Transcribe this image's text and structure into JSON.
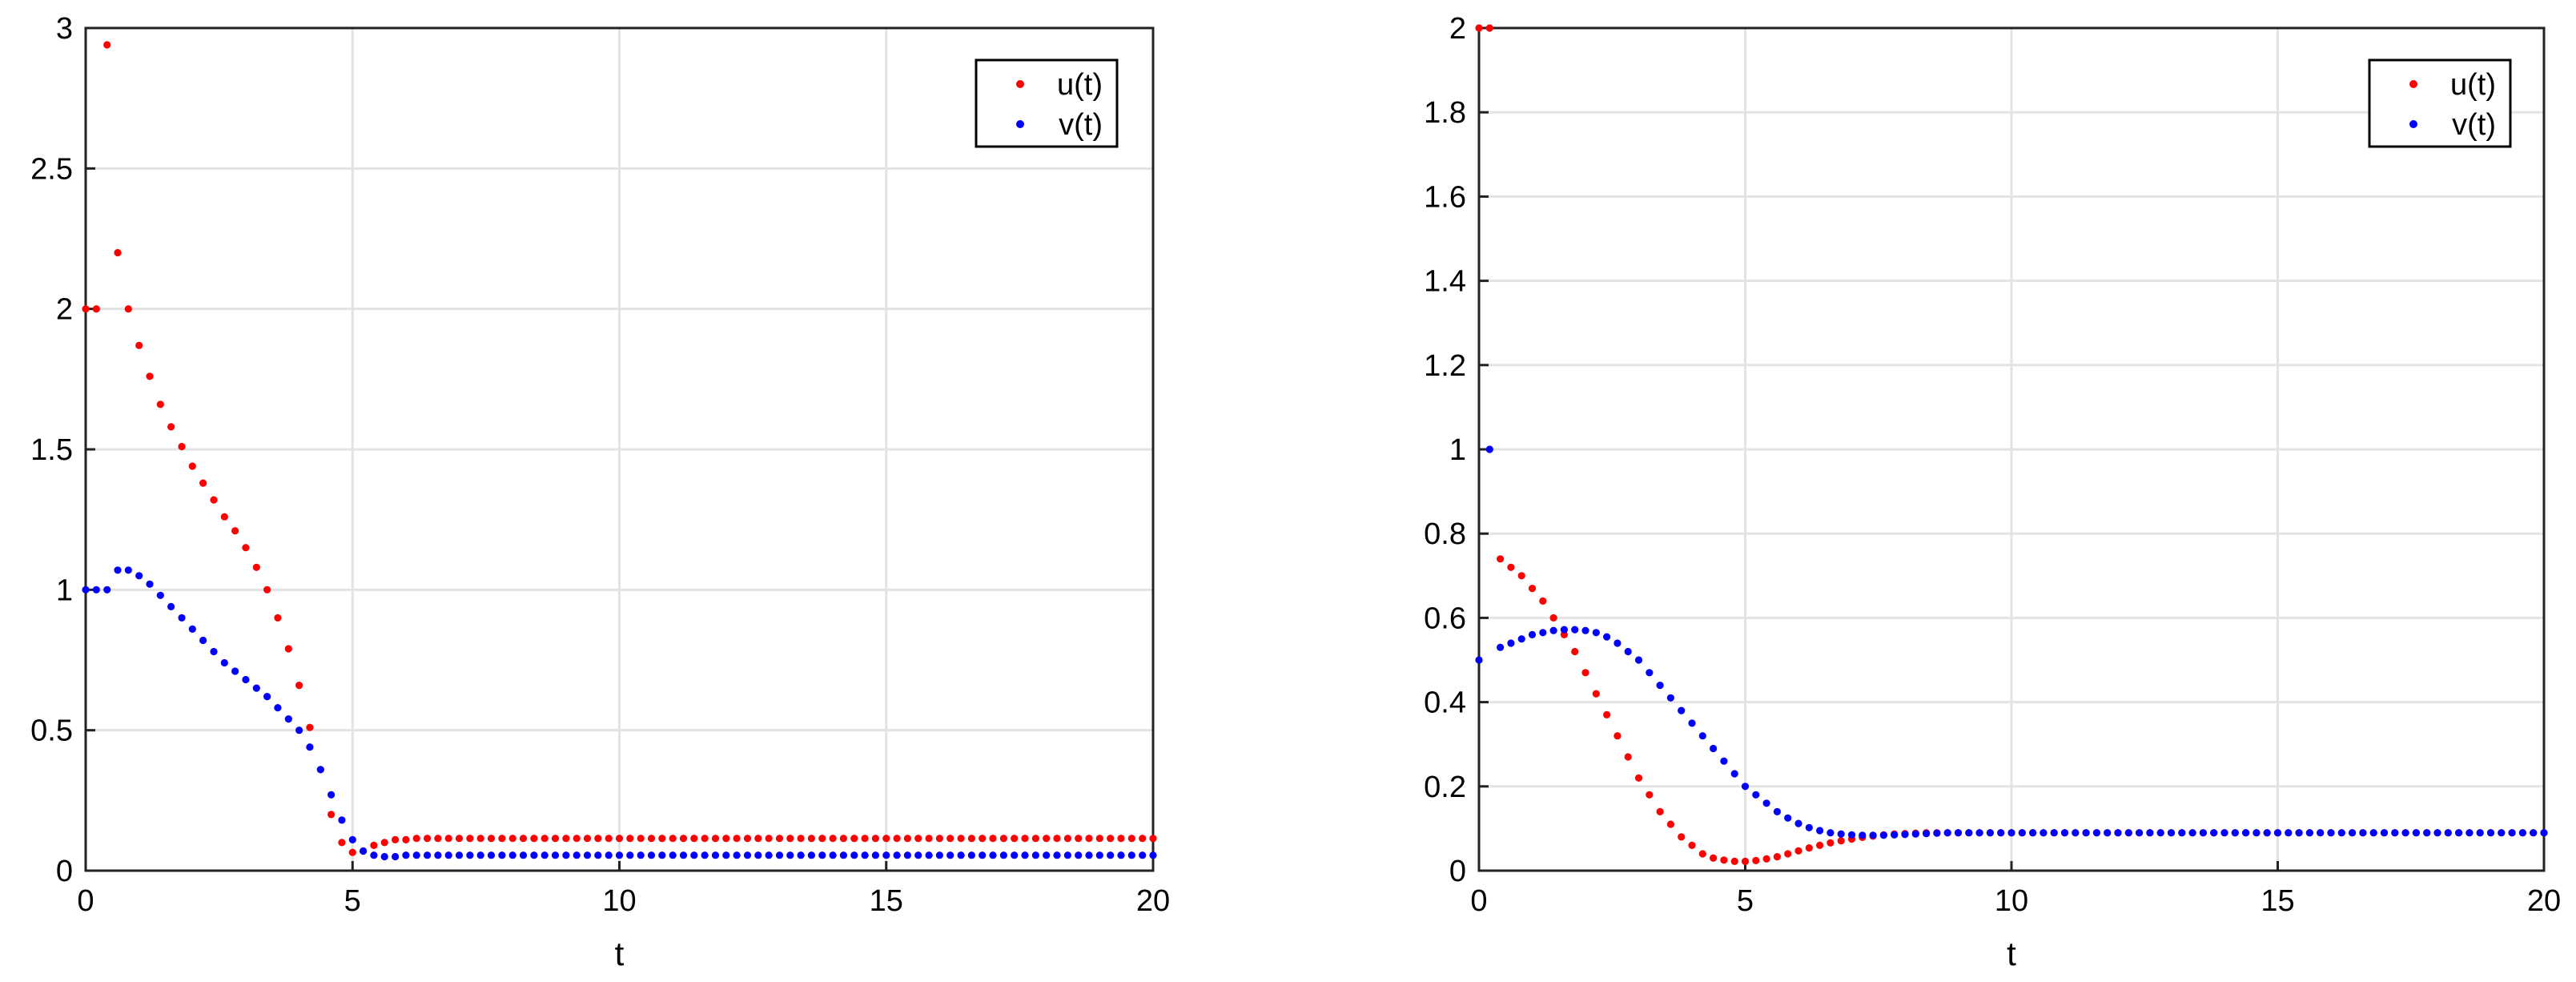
{
  "colors": {
    "u": "#ff0000",
    "v": "#0000ff",
    "grid": "#e3e3e3",
    "axis": "#222222"
  },
  "chart_data": [
    {
      "type": "scatter",
      "title": "",
      "xlabel": "t",
      "ylabel": "",
      "xlim": [
        0,
        20
      ],
      "ylim": [
        0,
        3
      ],
      "xticks": [
        0,
        5,
        10,
        15,
        20
      ],
      "yticks": [
        0,
        0.5,
        1,
        1.5,
        2,
        2.5,
        3
      ],
      "xtick_labels": [
        "0",
        "5",
        "10",
        "15",
        "20"
      ],
      "ytick_labels": [
        "0",
        "0.5",
        "1",
        "1.5",
        "2",
        "2.5",
        "3"
      ],
      "grid": true,
      "legend_position": "top-right",
      "series": [
        {
          "name": "u(t)",
          "color": "#ff0000",
          "x_start": 0,
          "x_step": 0.2,
          "values": [
            2,
            2,
            2.94,
            2.2,
            2.0,
            1.87,
            1.76,
            1.66,
            1.58,
            1.51,
            1.44,
            1.38,
            1.32,
            1.26,
            1.21,
            1.15,
            1.08,
            1.0,
            0.9,
            0.79,
            0.66,
            0.51,
            0.36,
            0.2,
            0.1,
            0.065,
            0.07,
            0.09,
            0.1,
            0.11,
            0.11,
            0.115,
            0.115,
            0.115,
            0.115,
            0.115,
            0.115,
            0.115,
            0.115,
            0.115,
            0.115,
            0.115,
            0.115,
            0.115,
            0.115,
            0.115,
            0.115,
            0.115,
            0.115,
            0.115,
            0.115,
            0.115,
            0.115,
            0.115,
            0.115,
            0.115,
            0.115,
            0.115,
            0.115,
            0.115,
            0.115,
            0.115,
            0.115,
            0.115,
            0.115,
            0.115,
            0.115,
            0.115,
            0.115,
            0.115,
            0.115,
            0.115,
            0.115,
            0.115,
            0.115,
            0.115,
            0.115,
            0.115,
            0.115,
            0.115,
            0.115,
            0.115,
            0.115,
            0.115,
            0.115,
            0.115,
            0.115,
            0.115,
            0.115,
            0.115,
            0.115,
            0.115,
            0.115,
            0.115,
            0.115,
            0.115,
            0.115,
            0.115,
            0.115,
            0.115,
            0.115
          ]
        },
        {
          "name": "v(t)",
          "color": "#0000ff",
          "x_start": 0,
          "x_step": 0.2,
          "values": [
            1,
            1,
            1,
            1.07,
            1.07,
            1.05,
            1.02,
            0.98,
            0.94,
            0.9,
            0.86,
            0.82,
            0.78,
            0.74,
            0.71,
            0.68,
            0.65,
            0.62,
            0.58,
            0.54,
            0.5,
            0.44,
            0.36,
            0.27,
            0.18,
            0.11,
            0.07,
            0.055,
            0.05,
            0.05,
            0.055,
            0.055,
            0.055,
            0.055,
            0.055,
            0.055,
            0.055,
            0.055,
            0.055,
            0.055,
            0.055,
            0.055,
            0.055,
            0.055,
            0.055,
            0.055,
            0.055,
            0.055,
            0.055,
            0.055,
            0.055,
            0.055,
            0.055,
            0.055,
            0.055,
            0.055,
            0.055,
            0.055,
            0.055,
            0.055,
            0.055,
            0.055,
            0.055,
            0.055,
            0.055,
            0.055,
            0.055,
            0.055,
            0.055,
            0.055,
            0.055,
            0.055,
            0.055,
            0.055,
            0.055,
            0.055,
            0.055,
            0.055,
            0.055,
            0.055,
            0.055,
            0.055,
            0.055,
            0.055,
            0.055,
            0.055,
            0.055,
            0.055,
            0.055,
            0.055,
            0.055,
            0.055,
            0.055,
            0.055,
            0.055,
            0.055,
            0.055,
            0.055,
            0.055,
            0.055,
            0.055
          ]
        }
      ]
    },
    {
      "type": "scatter",
      "title": "",
      "xlabel": "t",
      "ylabel": "",
      "xlim": [
        0,
        20
      ],
      "ylim": [
        0,
        2
      ],
      "xticks": [
        0,
        5,
        10,
        15,
        20
      ],
      "yticks": [
        0,
        0.2,
        0.4,
        0.6,
        0.8,
        1,
        1.2,
        1.4,
        1.6,
        1.8,
        2
      ],
      "xtick_labels": [
        "0",
        "5",
        "10",
        "15",
        "20"
      ],
      "ytick_labels": [
        "0",
        "0.2",
        "0.4",
        "0.6",
        "0.8",
        "1",
        "1.2",
        "1.4",
        "1.6",
        "1.8",
        "2"
      ],
      "grid": true,
      "legend_position": "top-right",
      "series": [
        {
          "name": "u(t)",
          "color": "#ff0000",
          "x_start": 0,
          "x_step": 0.2,
          "values": [
            2,
            2,
            0.74,
            0.72,
            0.7,
            0.67,
            0.64,
            0.6,
            0.56,
            0.52,
            0.47,
            0.42,
            0.37,
            0.32,
            0.27,
            0.22,
            0.18,
            0.14,
            0.11,
            0.08,
            0.06,
            0.04,
            0.03,
            0.025,
            0.022,
            0.022,
            0.024,
            0.028,
            0.033,
            0.04,
            0.047,
            0.054,
            0.06,
            0.066,
            0.071,
            0.075,
            0.079,
            0.082,
            0.085,
            0.087,
            0.088,
            0.089,
            0.09,
            0.09,
            0.09,
            0.09,
            0.09,
            0.09,
            0.09,
            0.09,
            0.09,
            0.09,
            0.09,
            0.09,
            0.09,
            0.09,
            0.09,
            0.09,
            0.09,
            0.09,
            0.09,
            0.09,
            0.09,
            0.09,
            0.09,
            0.09,
            0.09,
            0.09,
            0.09,
            0.09,
            0.09,
            0.09,
            0.09,
            0.09,
            0.09,
            0.09,
            0.09,
            0.09,
            0.09,
            0.09,
            0.09,
            0.09,
            0.09,
            0.09,
            0.09,
            0.09,
            0.09,
            0.09,
            0.09,
            0.09,
            0.09,
            0.09,
            0.09,
            0.09,
            0.09,
            0.09,
            0.09,
            0.09,
            0.09,
            0.09,
            0.09
          ]
        },
        {
          "name": "v(t)",
          "color": "#0000ff",
          "x_start": 0,
          "x_step": 0.2,
          "values": [
            0.5,
            1,
            0.53,
            0.54,
            0.55,
            0.56,
            0.565,
            0.57,
            0.572,
            0.572,
            0.57,
            0.565,
            0.555,
            0.54,
            0.52,
            0.5,
            0.47,
            0.44,
            0.41,
            0.38,
            0.35,
            0.32,
            0.29,
            0.26,
            0.23,
            0.2,
            0.18,
            0.16,
            0.14,
            0.125,
            0.112,
            0.102,
            0.095,
            0.09,
            0.087,
            0.085,
            0.084,
            0.084,
            0.084,
            0.085,
            0.086,
            0.087,
            0.088,
            0.089,
            0.09,
            0.09,
            0.09,
            0.09,
            0.09,
            0.09,
            0.09,
            0.09,
            0.09,
            0.09,
            0.09,
            0.09,
            0.09,
            0.09,
            0.09,
            0.09,
            0.09,
            0.09,
            0.09,
            0.09,
            0.09,
            0.09,
            0.09,
            0.09,
            0.09,
            0.09,
            0.09,
            0.09,
            0.09,
            0.09,
            0.09,
            0.09,
            0.09,
            0.09,
            0.09,
            0.09,
            0.09,
            0.09,
            0.09,
            0.09,
            0.09,
            0.09,
            0.09,
            0.09,
            0.09,
            0.09,
            0.09,
            0.09,
            0.09,
            0.09,
            0.09,
            0.09,
            0.09,
            0.09,
            0.09,
            0.09,
            0.09
          ]
        }
      ]
    }
  ]
}
